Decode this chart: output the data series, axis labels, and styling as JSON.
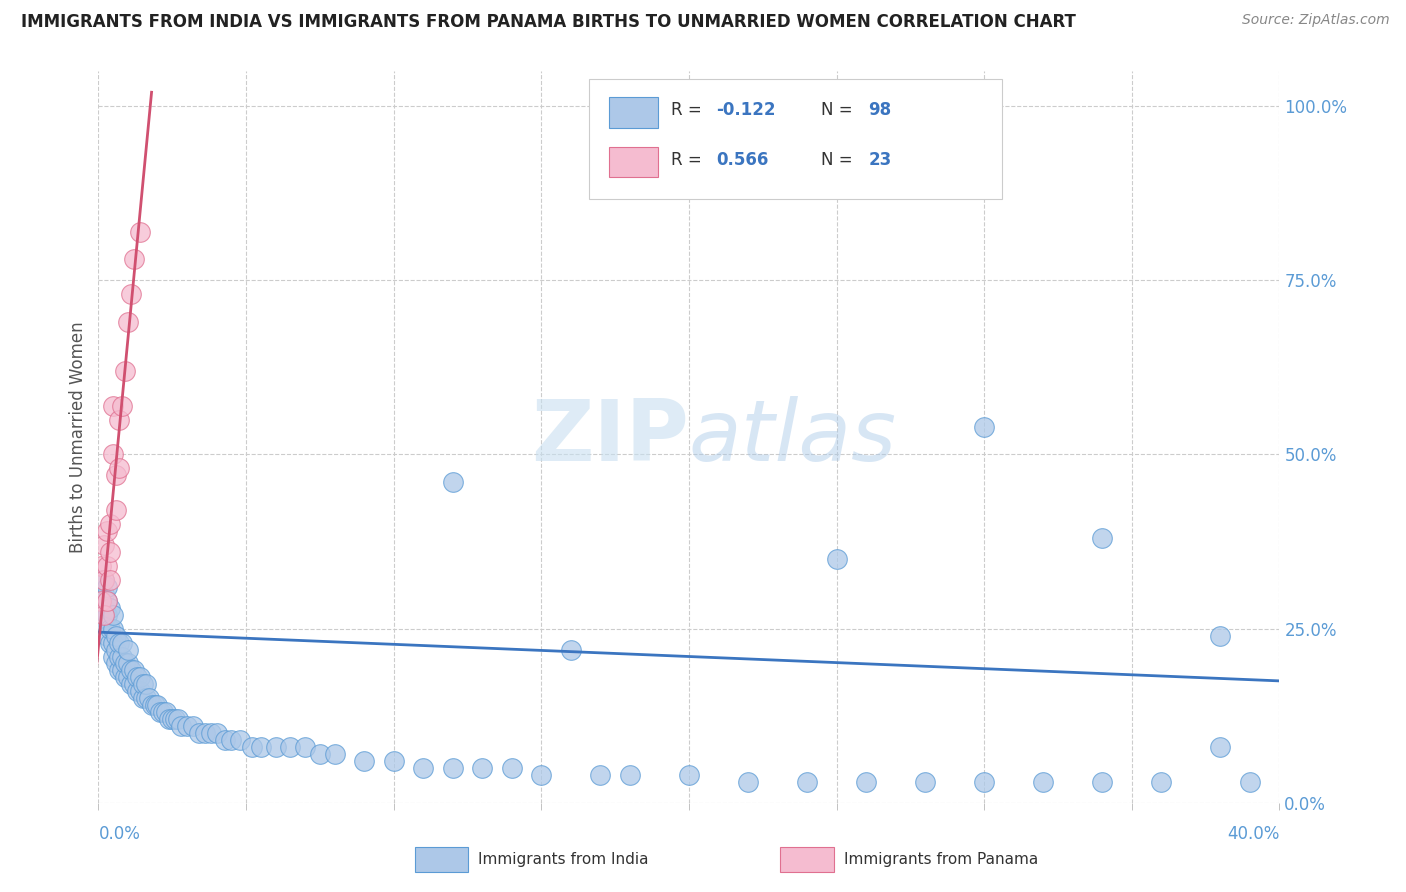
{
  "title": "IMMIGRANTS FROM INDIA VS IMMIGRANTS FROM PANAMA BIRTHS TO UNMARRIED WOMEN CORRELATION CHART",
  "source_text": "Source: ZipAtlas.com",
  "ylabel": "Births to Unmarried Women",
  "xlim": [
    0.0,
    0.4
  ],
  "ylim": [
    0.0,
    1.05
  ],
  "india_color": "#adc8e8",
  "panama_color": "#f5bcd0",
  "india_edge_color": "#5b9bd5",
  "panama_edge_color": "#e07090",
  "india_line_color": "#3b75c0",
  "panama_line_color": "#d05070",
  "watermark_color": "#d0e5f5",
  "right_tick_color": "#5b9bd5",
  "axis_label_color": "#555555",
  "grid_color": "#cccccc",
  "india_trend_x": [
    0.0,
    0.4
  ],
  "india_trend_y": [
    0.245,
    0.175
  ],
  "panama_trend_x": [
    -0.001,
    0.018
  ],
  "panama_trend_y": [
    0.18,
    1.02
  ],
  "india_scatter_x": [
    0.001,
    0.001,
    0.001,
    0.002,
    0.002,
    0.002,
    0.002,
    0.003,
    0.003,
    0.003,
    0.003,
    0.004,
    0.004,
    0.004,
    0.005,
    0.005,
    0.005,
    0.005,
    0.006,
    0.006,
    0.006,
    0.007,
    0.007,
    0.007,
    0.008,
    0.008,
    0.008,
    0.009,
    0.009,
    0.01,
    0.01,
    0.01,
    0.011,
    0.011,
    0.012,
    0.012,
    0.013,
    0.013,
    0.014,
    0.014,
    0.015,
    0.015,
    0.016,
    0.016,
    0.017,
    0.018,
    0.019,
    0.02,
    0.021,
    0.022,
    0.023,
    0.024,
    0.025,
    0.026,
    0.027,
    0.028,
    0.03,
    0.032,
    0.034,
    0.036,
    0.038,
    0.04,
    0.043,
    0.045,
    0.048,
    0.052,
    0.055,
    0.06,
    0.065,
    0.07,
    0.075,
    0.08,
    0.09,
    0.1,
    0.11,
    0.12,
    0.13,
    0.14,
    0.15,
    0.16,
    0.17,
    0.18,
    0.2,
    0.22,
    0.24,
    0.26,
    0.28,
    0.3,
    0.32,
    0.34,
    0.36,
    0.38,
    0.39,
    0.25,
    0.3,
    0.34,
    0.38,
    0.12
  ],
  "india_scatter_y": [
    0.28,
    0.3,
    0.32,
    0.26,
    0.28,
    0.3,
    0.32,
    0.24,
    0.27,
    0.29,
    0.31,
    0.23,
    0.25,
    0.28,
    0.21,
    0.23,
    0.25,
    0.27,
    0.2,
    0.22,
    0.24,
    0.19,
    0.21,
    0.23,
    0.19,
    0.21,
    0.23,
    0.18,
    0.2,
    0.18,
    0.2,
    0.22,
    0.17,
    0.19,
    0.17,
    0.19,
    0.16,
    0.18,
    0.16,
    0.18,
    0.15,
    0.17,
    0.15,
    0.17,
    0.15,
    0.14,
    0.14,
    0.14,
    0.13,
    0.13,
    0.13,
    0.12,
    0.12,
    0.12,
    0.12,
    0.11,
    0.11,
    0.11,
    0.1,
    0.1,
    0.1,
    0.1,
    0.09,
    0.09,
    0.09,
    0.08,
    0.08,
    0.08,
    0.08,
    0.08,
    0.07,
    0.07,
    0.06,
    0.06,
    0.05,
    0.05,
    0.05,
    0.05,
    0.04,
    0.22,
    0.04,
    0.04,
    0.04,
    0.03,
    0.03,
    0.03,
    0.03,
    0.03,
    0.03,
    0.03,
    0.03,
    0.08,
    0.03,
    0.35,
    0.54,
    0.38,
    0.24,
    0.46
  ],
  "panama_scatter_x": [
    0.001,
    0.001,
    0.002,
    0.002,
    0.002,
    0.003,
    0.003,
    0.003,
    0.004,
    0.004,
    0.004,
    0.005,
    0.005,
    0.006,
    0.006,
    0.007,
    0.007,
    0.008,
    0.009,
    0.01,
    0.011,
    0.012,
    0.014
  ],
  "panama_scatter_y": [
    0.29,
    0.34,
    0.27,
    0.32,
    0.37,
    0.29,
    0.34,
    0.39,
    0.32,
    0.36,
    0.4,
    0.5,
    0.57,
    0.42,
    0.47,
    0.48,
    0.55,
    0.57,
    0.62,
    0.69,
    0.73,
    0.78,
    0.82
  ],
  "x_ticks": [
    0.0,
    0.05,
    0.1,
    0.15,
    0.2,
    0.25,
    0.3,
    0.35,
    0.4
  ],
  "y_ticks": [
    0.0,
    0.25,
    0.5,
    0.75,
    1.0
  ],
  "y_tick_labels": [
    "0.0%",
    "25.0%",
    "50.0%",
    "75.0%",
    "100.0%"
  ]
}
